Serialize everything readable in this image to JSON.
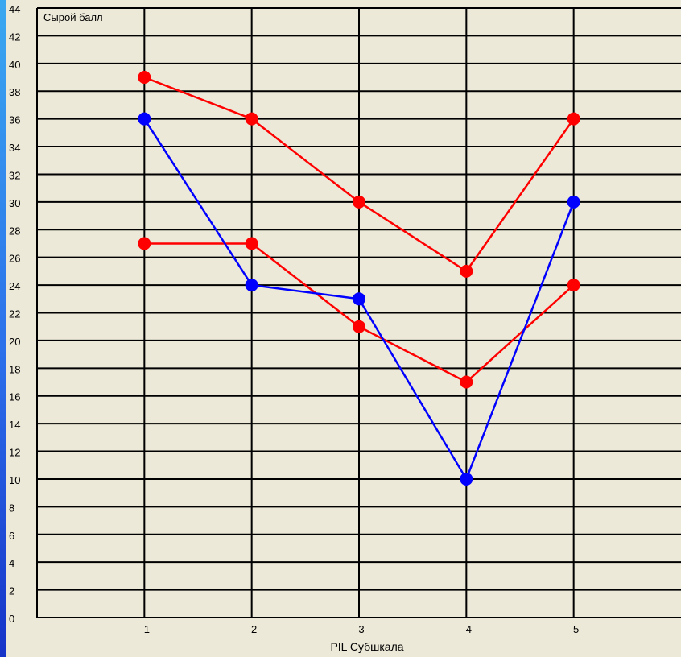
{
  "chart_data": {
    "type": "line",
    "ylabel": "Сырой балл",
    "xlabel": "PIL Субшкала",
    "categories": [
      "1",
      "2",
      "3",
      "4",
      "5"
    ],
    "y_ticks": [
      "0",
      "2",
      "4",
      "6",
      "8",
      "10",
      "12",
      "14",
      "16",
      "18",
      "20",
      "22",
      "24",
      "26",
      "28",
      "30",
      "32",
      "34",
      "36",
      "38",
      "40",
      "42",
      "44"
    ],
    "ylim": [
      0,
      44
    ],
    "xlim": [
      0,
      6
    ],
    "grid": true,
    "series": [
      {
        "color": "#FF0000",
        "values": [
          39,
          36,
          30,
          25,
          36
        ]
      },
      {
        "color": "#FF0000",
        "values": [
          27,
          27,
          21,
          17,
          24
        ]
      },
      {
        "color": "#0000FF",
        "values": [
          36,
          24,
          23,
          10,
          30
        ]
      }
    ]
  }
}
